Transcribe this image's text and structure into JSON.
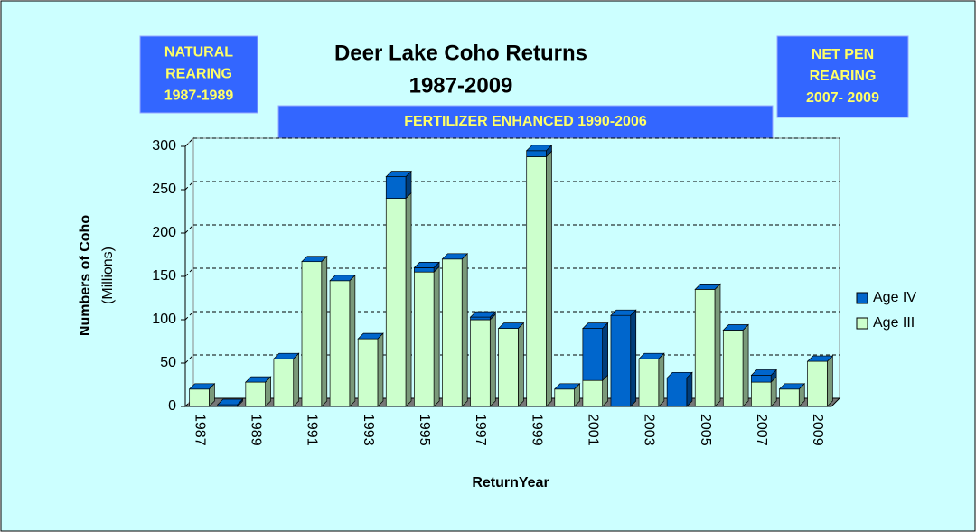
{
  "chart_data": {
    "type": "bar3d_stacked",
    "title": "Deer Lake Coho Returns",
    "subtitle": "1987-2009",
    "annotations": [
      {
        "lines": [
          "NATURAL",
          "REARING",
          "1987-1989"
        ]
      },
      {
        "lines": [
          "FERTILIZER  ENHANCED 1990-2006"
        ]
      },
      {
        "lines": [
          "NET PEN",
          "REARING",
          "2007- 2009"
        ]
      }
    ],
    "xlabel": "ReturnYear",
    "ylabel": "Numbers of Coho",
    "ylabel_sub": "(Millions)",
    "categories": [
      "1987",
      null,
      "1989",
      null,
      "1991",
      null,
      "1993",
      null,
      "1995",
      null,
      "1997",
      null,
      "1999",
      null,
      "2001",
      null,
      "2003",
      null,
      "2005",
      null,
      "2007",
      null,
      "2009"
    ],
    "series": [
      {
        "name": "Age III",
        "color": "#ccffcc",
        "values": [
          20,
          0,
          28,
          55,
          167,
          145,
          78,
          240,
          155,
          170,
          100,
          90,
          288,
          20,
          30,
          0,
          55,
          0,
          135,
          88,
          28,
          20,
          52
        ]
      },
      {
        "name": "Age IV",
        "color": "#0066cc",
        "values": [
          0,
          2,
          0,
          0,
          0,
          0,
          0,
          25,
          5,
          0,
          3,
          0,
          7,
          0,
          60,
          105,
          0,
          33,
          0,
          0,
          8,
          0,
          0
        ]
      }
    ],
    "ylim": [
      0,
      300
    ],
    "yticks": [
      0,
      50,
      100,
      150,
      200,
      250,
      300
    ],
    "grid": true,
    "legend": "right"
  }
}
